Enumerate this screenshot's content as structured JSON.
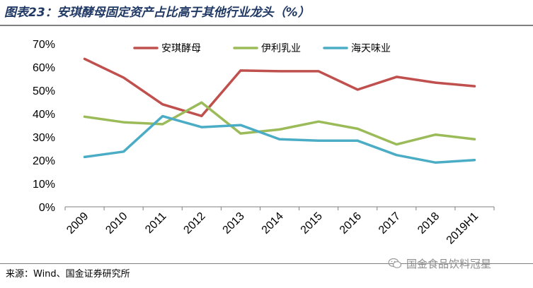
{
  "header": {
    "title": "图表23：安琪酵母固定资产占比高于其他行业龙头（%）"
  },
  "footer": {
    "source": "来源：Wind、国金证券研究所",
    "watermark": "国金食品饮料冠星"
  },
  "icons": {
    "watermark": "wechat-icon"
  },
  "colors": {
    "title": "#1f3864",
    "series": [
      "#c0504d",
      "#9bbb59",
      "#4bacc6"
    ]
  },
  "chart_data": {
    "type": "line",
    "title": "安琪酵母固定资产占比高于其他行业龙头（%）",
    "xlabel": "",
    "ylabel": "",
    "categories": [
      "2009",
      "2010",
      "2011",
      "2012",
      "2013",
      "2014",
      "2015",
      "2016",
      "2017",
      "2018",
      "2019H1"
    ],
    "ylim": [
      0,
      70
    ],
    "yticks": [
      "0%",
      "10%",
      "20%",
      "30%",
      "40%",
      "50%",
      "60%",
      "70%"
    ],
    "grid": false,
    "legend_position": "top",
    "series": [
      {
        "name": "安琪酵母",
        "color": "#c0504d",
        "values": [
          63.5,
          55.5,
          44,
          39,
          58.5,
          58.2,
          58.2,
          50.3,
          55.8,
          53.3,
          51.8
        ]
      },
      {
        "name": "伊利乳业",
        "color": "#9bbb59",
        "values": [
          38.7,
          36.3,
          35.5,
          44.8,
          31.5,
          33.2,
          36.6,
          33.5,
          26.8,
          31,
          29
        ]
      },
      {
        "name": "海天味业",
        "color": "#4bacc6",
        "values": [
          21.4,
          23.7,
          38.9,
          34.2,
          35.1,
          29,
          28.4,
          28.4,
          22.2,
          19,
          20.1
        ]
      }
    ]
  }
}
